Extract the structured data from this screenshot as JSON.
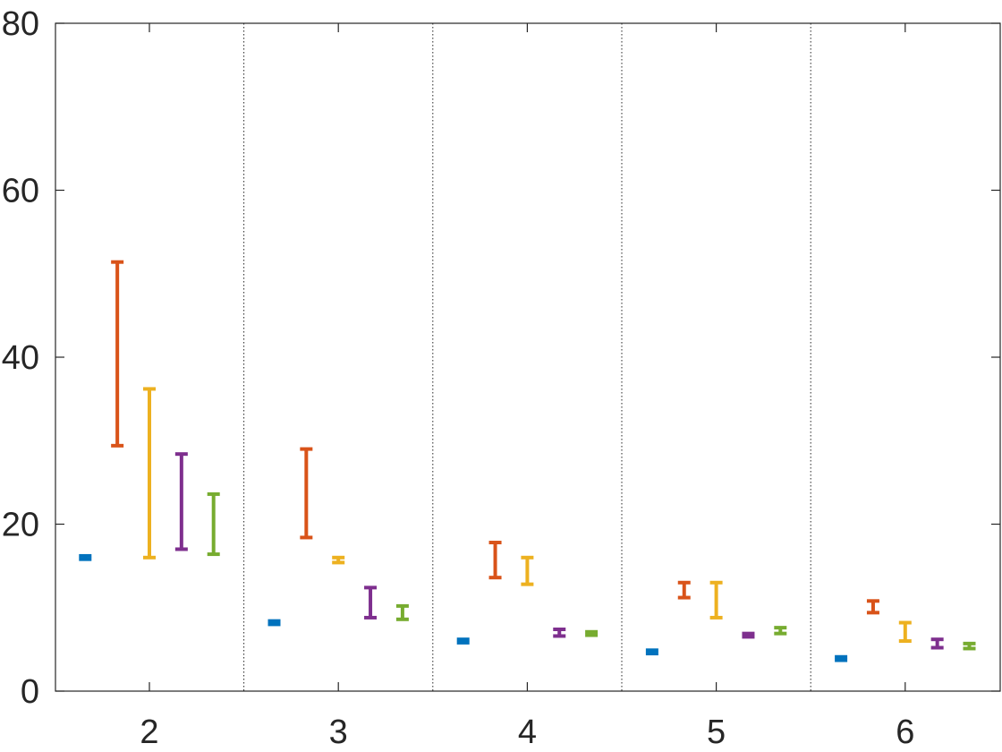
{
  "chart_data": {
    "type": "errorbar",
    "categories": [
      "2",
      "3",
      "4",
      "5",
      "6"
    ],
    "ylim": [
      0,
      80
    ],
    "yticks": [
      0,
      20,
      40,
      60,
      80
    ],
    "ytick_labels": [
      "0",
      "20",
      "40",
      "60",
      "80"
    ],
    "group_separators": true,
    "grid": false,
    "legend": "none",
    "series": [
      {
        "color": "#0072BD",
        "low": [
          15.8,
          8.0,
          5.8,
          4.5,
          3.7
        ],
        "high": [
          16.2,
          8.4,
          6.2,
          4.9,
          4.1
        ]
      },
      {
        "color": "#D95319",
        "low": [
          29.4,
          18.4,
          13.6,
          11.2,
          9.4
        ],
        "high": [
          51.4,
          29.0,
          17.8,
          13.0,
          10.8
        ]
      },
      {
        "color": "#EDB120",
        "low": [
          16.0,
          15.4,
          12.8,
          8.8,
          6.0
        ],
        "high": [
          36.2,
          16.0,
          16.0,
          13.0,
          8.2
        ]
      },
      {
        "color": "#7E2F8E",
        "low": [
          17.0,
          8.8,
          6.6,
          6.5,
          5.2
        ],
        "high": [
          28.4,
          12.4,
          7.4,
          6.9,
          6.2
        ]
      },
      {
        "color": "#77AC30",
        "low": [
          16.4,
          8.6,
          6.7,
          6.9,
          5.1
        ],
        "high": [
          23.6,
          10.2,
          7.1,
          7.6,
          5.7
        ]
      }
    ]
  }
}
